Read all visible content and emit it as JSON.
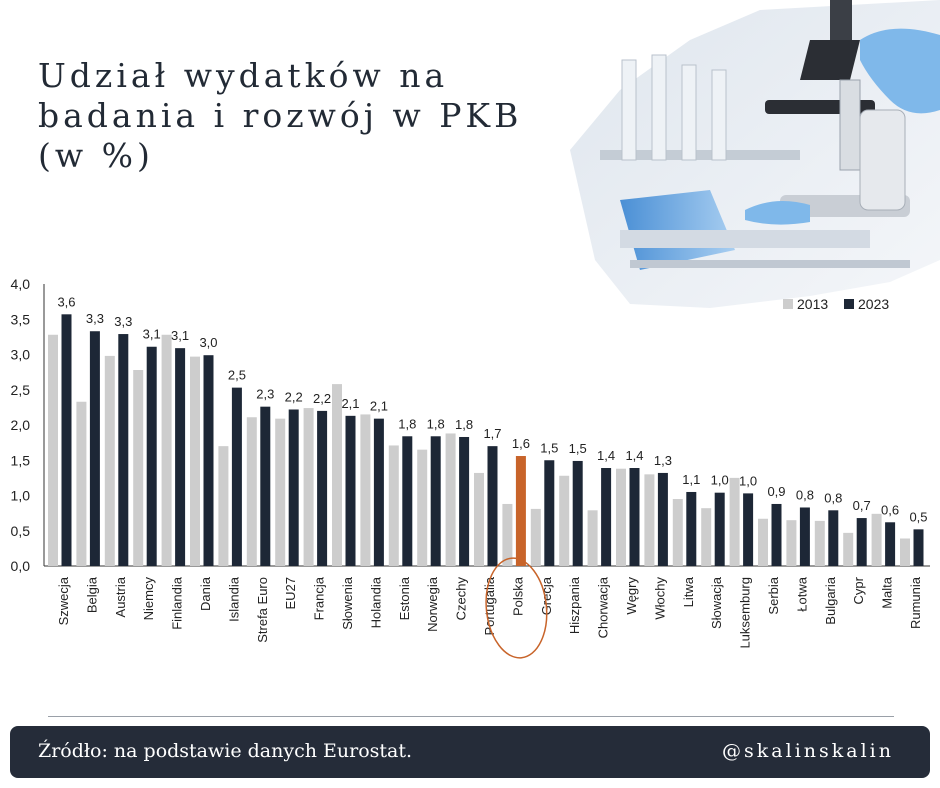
{
  "title": {
    "line1": "Udział wydatków na",
    "line2": "badania i rozwój w PKB",
    "line3": "(w %)"
  },
  "image": {
    "description_icon": "microscope-lab-photo"
  },
  "chart_data": {
    "type": "bar",
    "ylim": [
      0,
      4.0
    ],
    "yticks": [
      "0,0",
      "0,5",
      "1,0",
      "1,5",
      "2,0",
      "2,5",
      "3,0",
      "3,5",
      "4,0"
    ],
    "legend_position": "top-right",
    "highlight_category": "Polska",
    "highlight_color": "#c8642a",
    "categories": [
      "Szwecja",
      "Belgia",
      "Austria",
      "Niemcy",
      "Finlandia",
      "Dania",
      "Islandia",
      "Strefa Euro",
      "EU27",
      "Francja",
      "Słowenia",
      "Holandia",
      "Estonia",
      "Norwegia",
      "Czechy",
      "Portugalia",
      "Polska",
      "Grecja",
      "Hiszpania",
      "Chorwacja",
      "Węgry",
      "Włochy",
      "Litwa",
      "Słowacja",
      "Luksemburg",
      "Serbia",
      "Łotwa",
      "Bulgaria",
      "Cypr",
      "Malta",
      "Rumunia"
    ],
    "series": [
      {
        "name": "2013",
        "color": "#cdcdcd",
        "values": [
          3.28,
          2.33,
          2.98,
          2.78,
          3.28,
          2.97,
          1.7,
          2.11,
          2.09,
          2.24,
          2.58,
          2.15,
          1.71,
          1.65,
          1.88,
          1.32,
          0.88,
          0.81,
          1.28,
          0.79,
          1.38,
          1.3,
          0.95,
          0.82,
          1.25,
          0.67,
          0.65,
          0.64,
          0.47,
          0.74,
          0.39
        ]
      },
      {
        "name": "2023",
        "color": "#1d2736",
        "values": [
          3.57,
          3.33,
          3.29,
          3.11,
          3.09,
          2.99,
          2.53,
          2.26,
          2.22,
          2.2,
          2.13,
          2.09,
          1.84,
          1.84,
          1.83,
          1.7,
          1.56,
          1.5,
          1.49,
          1.39,
          1.39,
          1.32,
          1.05,
          1.04,
          1.03,
          0.88,
          0.83,
          0.79,
          0.68,
          0.62,
          0.52
        ]
      }
    ],
    "value_labels": [
      "3,6",
      "3,3",
      "3,3",
      "3,1",
      "3,1",
      "3,0",
      "2,5",
      "2,3",
      "2,2",
      "2,2",
      "2,1",
      "2,1",
      "1,8",
      "1,8",
      "1,8",
      "1,7",
      "1,6",
      "1,5",
      "1,5",
      "1,4",
      "1,4",
      "1,3",
      "1,1",
      "1,0",
      "1,0",
      "0,9",
      "0,8",
      "0,8",
      "0,7",
      "0,6",
      "0,5"
    ]
  },
  "footer": {
    "source": "Źródło: na podstawie danych Eurostat.",
    "handle": "@skalinskalin"
  }
}
